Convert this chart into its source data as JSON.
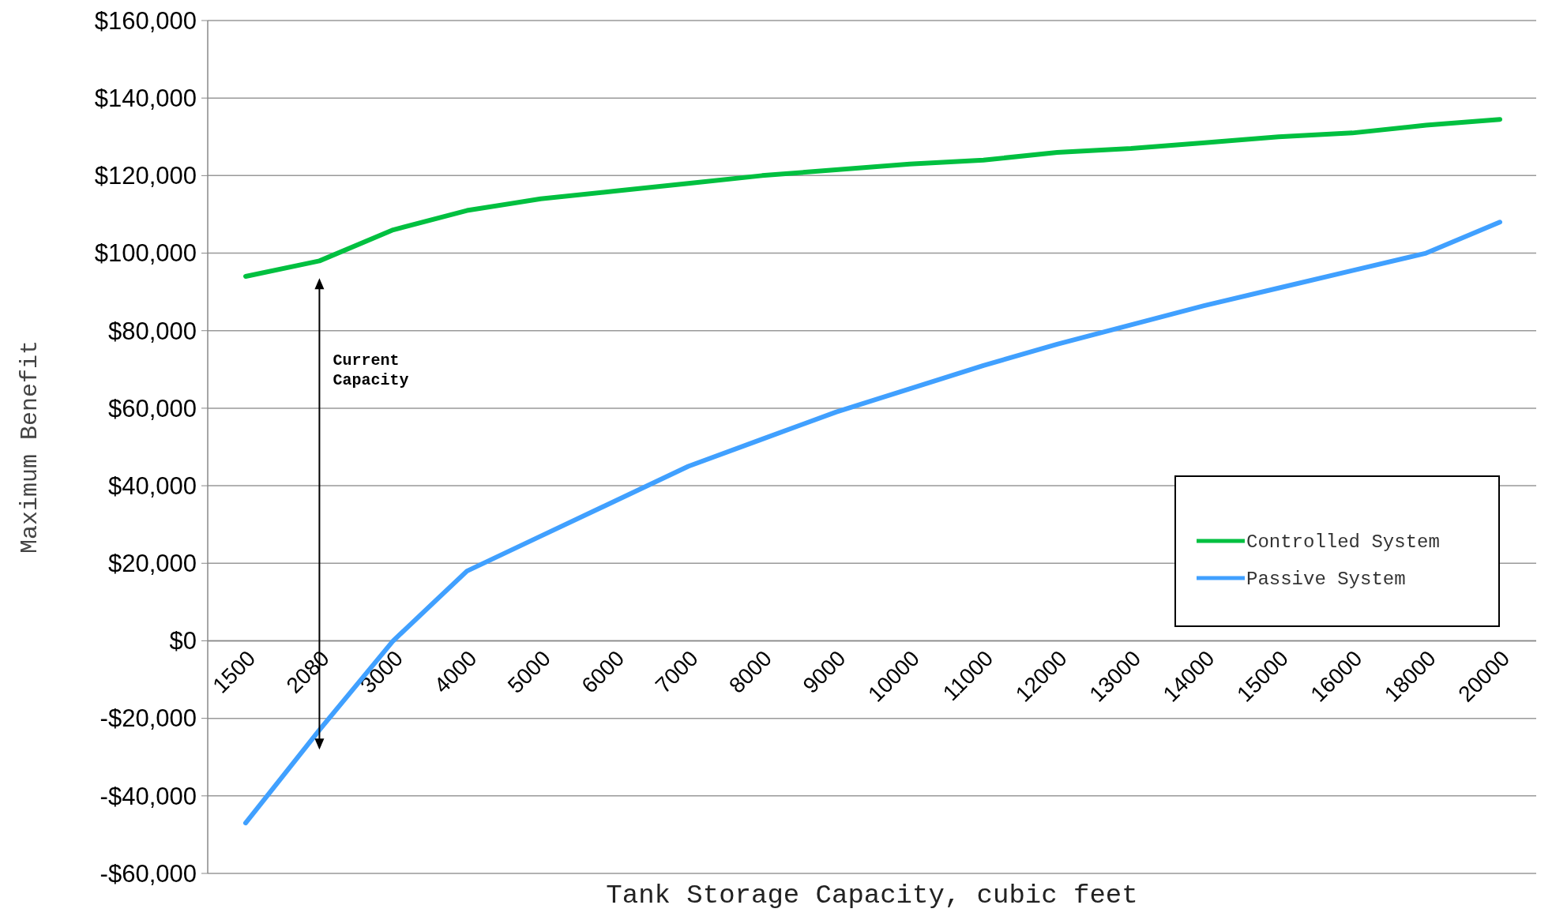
{
  "chart_data": {
    "type": "line",
    "xlabel": "Tank Storage Capacity, cubic feet",
    "ylabel": "Maximum Benefit",
    "categories": [
      "1500",
      "2080",
      "3000",
      "4000",
      "5000",
      "6000",
      "7000",
      "8000",
      "9000",
      "10000",
      "11000",
      "12000",
      "13000",
      "14000",
      "15000",
      "16000",
      "18000",
      "20000"
    ],
    "series": [
      {
        "name": "Controlled System",
        "color": "#00c040",
        "values": [
          94000,
          98000,
          106000,
          111000,
          114000,
          116000,
          118000,
          120000,
          121500,
          123000,
          124000,
          126000,
          127000,
          128500,
          130000,
          131000,
          133000,
          134500
        ]
      },
      {
        "name": "Passive System",
        "color": "#40a0ff",
        "values": [
          -47000,
          -23000,
          0,
          18000,
          27000,
          36000,
          45000,
          52000,
          59000,
          65000,
          71000,
          76500,
          81500,
          86500,
          91000,
          95500,
          100000,
          108000
        ]
      }
    ],
    "ylim": [
      -60000,
      160000
    ],
    "yticks": [
      {
        "value": -60000,
        "label": "-$60,000"
      },
      {
        "value": -40000,
        "label": "-$40,000"
      },
      {
        "value": -20000,
        "label": "-$20,000"
      },
      {
        "value": 0,
        "label": "$0"
      },
      {
        "value": 20000,
        "label": "$20,000"
      },
      {
        "value": 40000,
        "label": "$40,000"
      },
      {
        "value": 60000,
        "label": "$60,000"
      },
      {
        "value": 80000,
        "label": "$80,000"
      },
      {
        "value": 100000,
        "label": "$100,000"
      },
      {
        "value": 120000,
        "label": "$120,000"
      },
      {
        "value": 140000,
        "label": "$140,000"
      },
      {
        "value": 160000,
        "label": "$160,000"
      }
    ],
    "grid": "y",
    "legend": "right",
    "marker": "none",
    "line_style": "solid",
    "annotations": [
      "Current Capacity"
    ]
  }
}
